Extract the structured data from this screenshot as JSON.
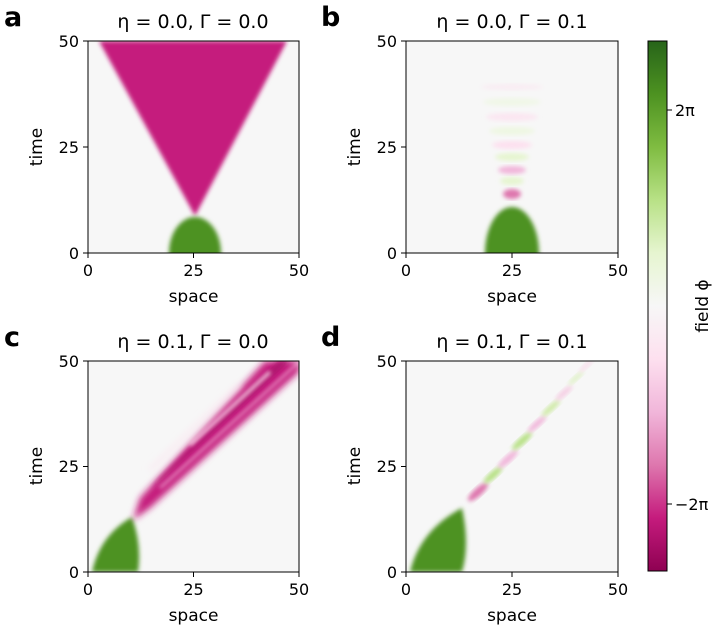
{
  "chart_data": [
    {
      "type": "heatmap",
      "panel": "a",
      "title": "η = 0.0, Γ = 0.0",
      "xlabel": "space",
      "ylabel": "time",
      "xlim": [
        0,
        50
      ],
      "ylim": [
        0,
        50
      ],
      "xticks": [
        "0",
        "25",
        "50"
      ],
      "yticks": [
        "0",
        "25",
        "50"
      ],
      "regions": [
        {
          "field": "positive",
          "description": "green lobe",
          "x_range": [
            20,
            30
          ],
          "t_range": [
            0,
            8
          ]
        },
        {
          "field": "negative",
          "description": "magenta V-cone",
          "apex": [
            25,
            9
          ],
          "edges_at_t50": [
            4,
            46
          ]
        }
      ]
    },
    {
      "type": "heatmap",
      "panel": "b",
      "title": "η = 0.0, Γ = 0.1",
      "xlabel": "space",
      "ylabel": "time",
      "xlim": [
        0,
        50
      ],
      "ylim": [
        0,
        50
      ],
      "xticks": [
        "0",
        "25",
        "50"
      ],
      "yticks": [
        "0",
        "25",
        "50"
      ],
      "regions": [
        {
          "field": "positive",
          "description": "green lobe",
          "x_range": [
            20,
            30
          ],
          "t_range": [
            0,
            11
          ]
        },
        {
          "field": "oscillating",
          "description": "decaying alternating bands",
          "center_x": 25,
          "t_range": [
            11,
            50
          ]
        }
      ]
    },
    {
      "type": "heatmap",
      "panel": "c",
      "title": "η = 0.1, Γ = 0.0",
      "xlabel": "space",
      "ylabel": "time",
      "xlim": [
        0,
        50
      ],
      "ylim": [
        0,
        50
      ],
      "xticks": [
        "0",
        "25",
        "50"
      ],
      "yticks": [
        "0",
        "25",
        "50"
      ],
      "regions": [
        {
          "field": "positive",
          "description": "green lobe",
          "x_range": [
            2,
            13
          ],
          "t_range": [
            0,
            13
          ]
        },
        {
          "field": "negative",
          "description": "diagonal magenta band",
          "from": [
            12,
            12
          ],
          "to": [
            50,
            50
          ]
        }
      ]
    },
    {
      "type": "heatmap",
      "panel": "d",
      "title": "η = 0.1, Γ = 0.1",
      "xlabel": "space",
      "ylabel": "time",
      "xlim": [
        0,
        50
      ],
      "ylim": [
        0,
        50
      ],
      "xticks": [
        "0",
        "25",
        "50"
      ],
      "yticks": [
        "0",
        "25",
        "50"
      ],
      "regions": [
        {
          "field": "positive",
          "description": "green lobe",
          "x_range": [
            2,
            14
          ],
          "t_range": [
            0,
            15
          ]
        },
        {
          "field": "oscillating",
          "description": "decaying diagonal bands",
          "from": [
            15,
            15
          ],
          "to": [
            42,
            50
          ]
        }
      ]
    }
  ],
  "colorbar": {
    "label": "field ϕ",
    "colormap": "PiYG",
    "ticks": [
      "2π",
      "−2π"
    ],
    "tick_values": [
      6.283,
      -6.283
    ],
    "range": [
      -8.2,
      8.2
    ],
    "colors": {
      "high": "#276419",
      "mid": "#f7f7f7",
      "low": "#8e0152"
    }
  }
}
